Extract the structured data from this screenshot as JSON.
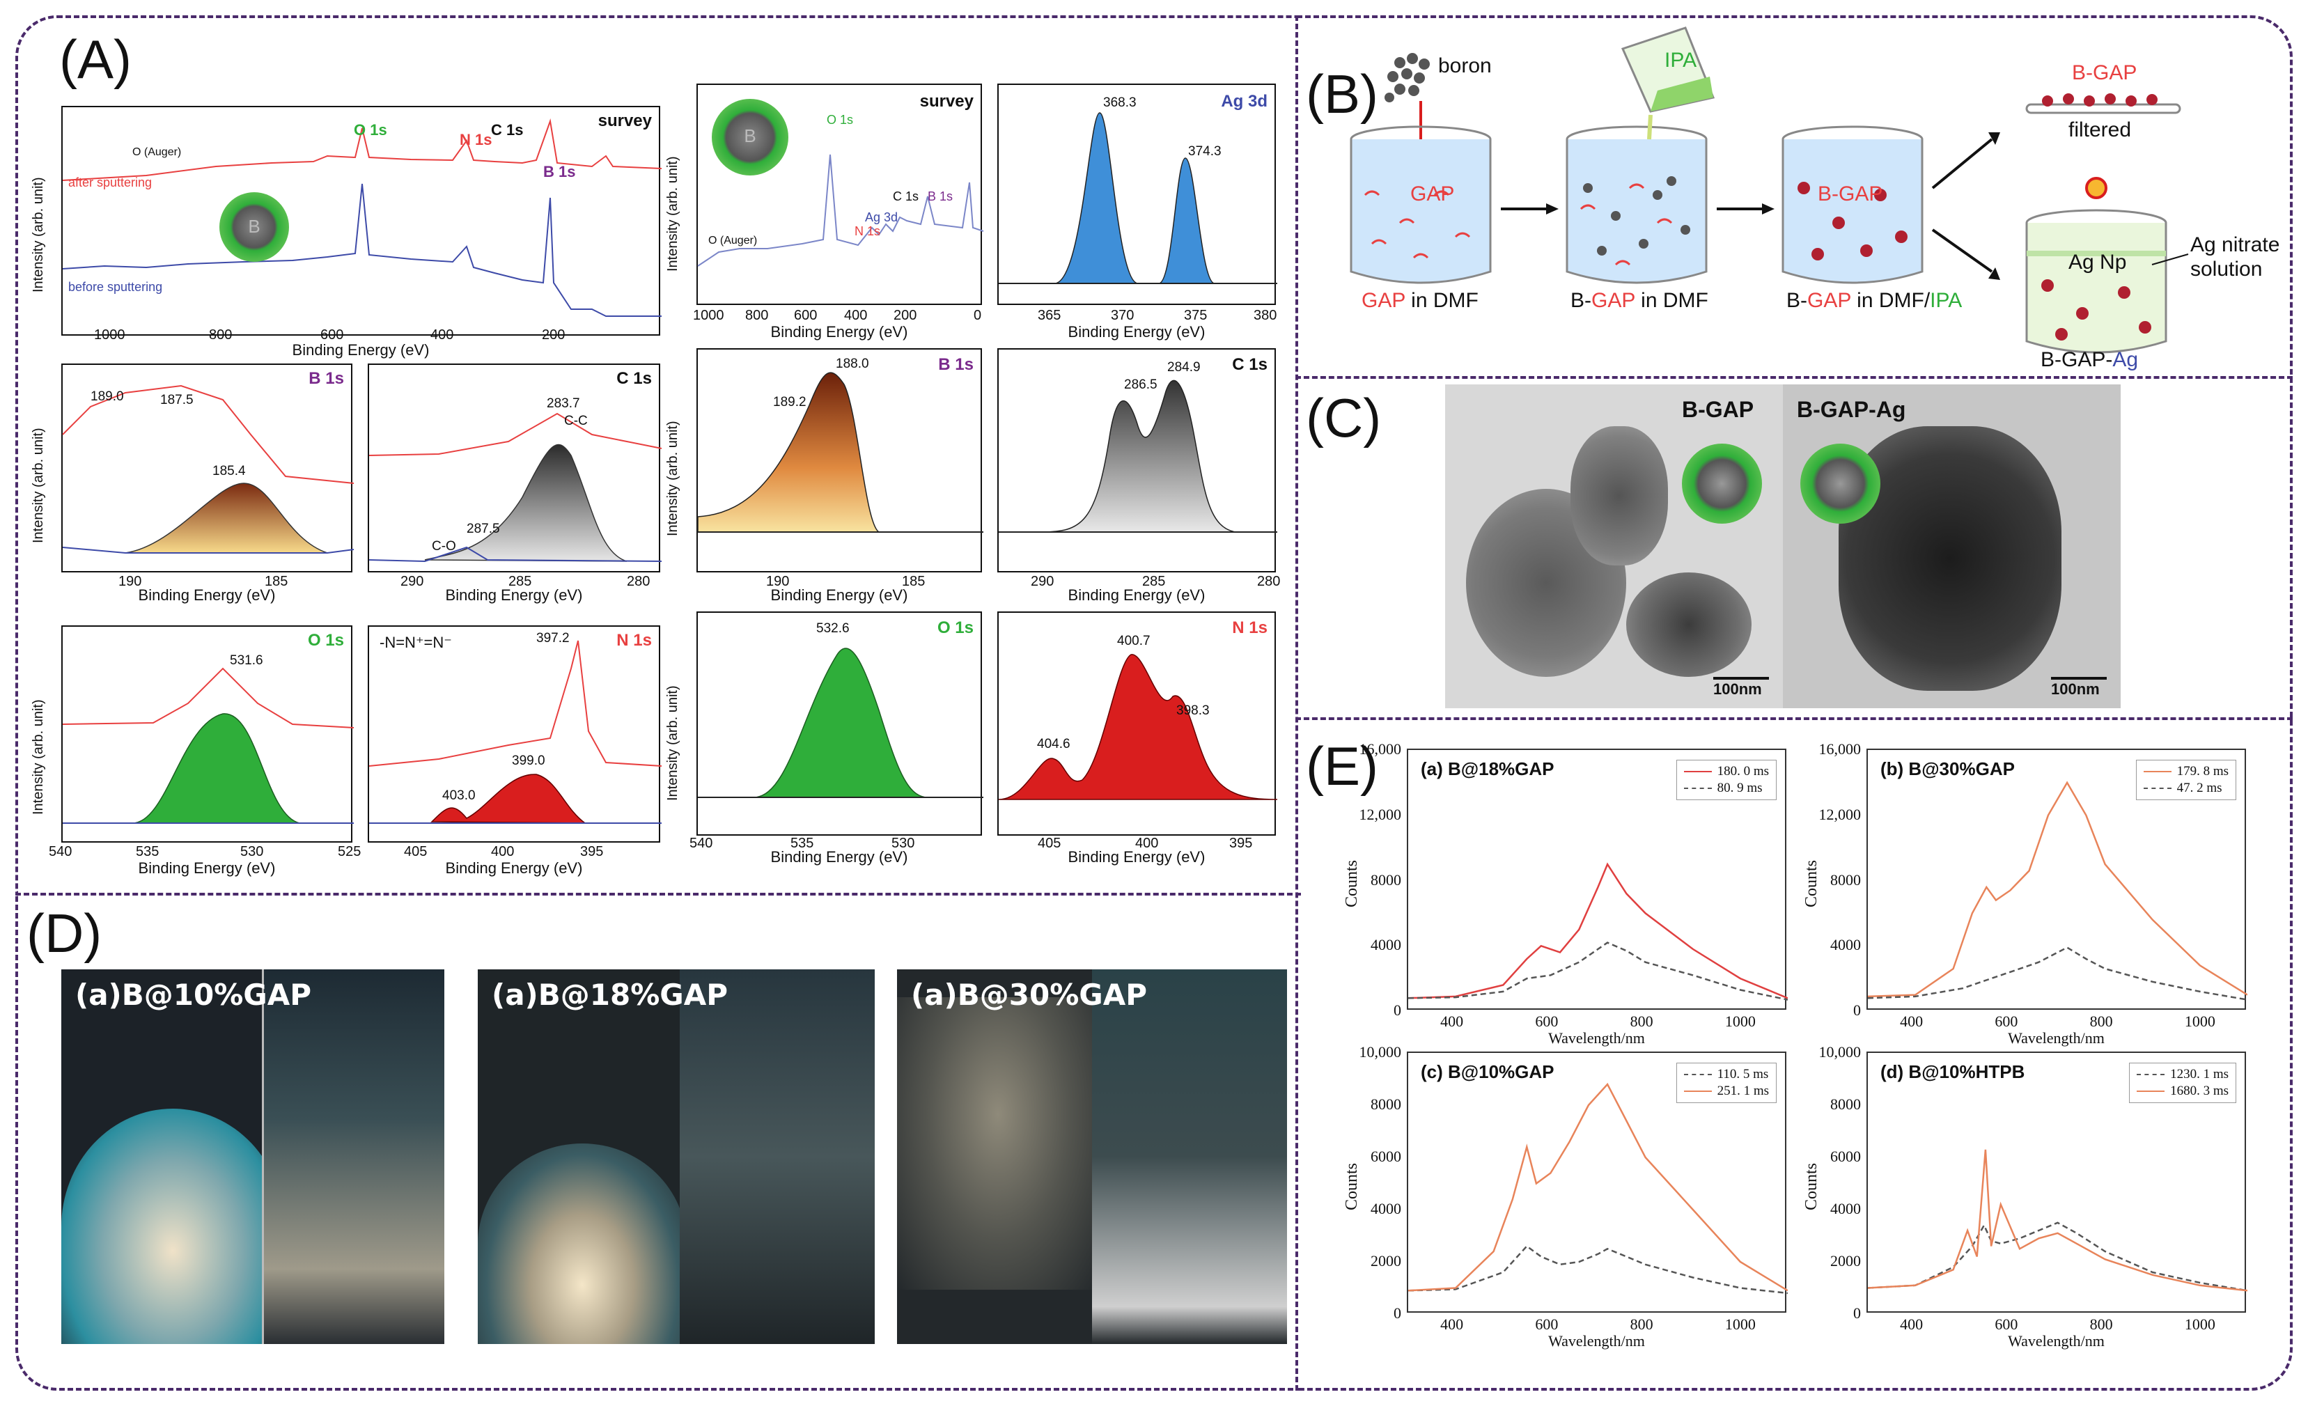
{
  "colors": {
    "frame": "#4a2a6a",
    "red": "#e84040",
    "blue": "#3d4aa8",
    "green": "#2fae3a",
    "purple": "#7a2a8c",
    "orange": "#e8845a",
    "grey_dash": "#555555"
  },
  "labels": {
    "A": "(A)",
    "B": "(B)",
    "C": "(C)",
    "D": "(D)",
    "E": "(E)"
  },
  "panel_a": {
    "survey1": {
      "title": "survey",
      "ylabel": "Intensity (arb. unit)",
      "xlabel": "Binding Energy (eV)",
      "xticks": [
        "1000",
        "800",
        "600",
        "400",
        "200"
      ],
      "peaks": [
        "O 1s",
        "N 1s",
        "C 1s",
        "B 1s",
        "O (Auger)"
      ],
      "after": "after sputtering",
      "before": "before sputtering",
      "sphere": "B"
    },
    "b1s": {
      "title": "B 1s",
      "xlabel": "Binding Energy (eV)",
      "ylabel": "Intensity (arb. unit)",
      "xticks": [
        "190",
        "185"
      ],
      "ann": [
        "189.0",
        "187.5",
        "185.4"
      ]
    },
    "c1s": {
      "title": "C 1s",
      "xlabel": "Binding Energy (eV)",
      "xticks": [
        "290",
        "285",
        "280"
      ],
      "ann": [
        "283.7",
        "C-C",
        "287.5",
        "C-O"
      ]
    },
    "o1s": {
      "title": "O 1s",
      "xlabel": "Binding Energy (eV)",
      "ylabel": "Intensity (arb. unit)",
      "xticks": [
        "540",
        "535",
        "530",
        "525"
      ],
      "ann": [
        "531.6"
      ]
    },
    "n1s": {
      "title": "N 1s",
      "xlabel": "Binding Energy (eV)",
      "xticks": [
        "405",
        "400",
        "395"
      ],
      "ann": [
        "397.2",
        "399.0",
        "403.0"
      ],
      "formula": "-N=N⁺=N⁻"
    },
    "survey2": {
      "title": "survey",
      "xlabel": "Binding Energy (eV)",
      "ylabel": "Intensity (arb. unit)",
      "xticks": [
        "1000",
        "800",
        "600",
        "400",
        "200",
        "0"
      ],
      "peaks": [
        "O 1s",
        "Ag 3d",
        "N 1s",
        "C 1s",
        "B 1s",
        "O (Auger)"
      ],
      "sphere": "B"
    },
    "ag3d": {
      "title": "Ag 3d",
      "xlabel": "Binding Energy (eV)",
      "xticks": [
        "365",
        "370",
        "375",
        "380"
      ],
      "ann": [
        "368.3",
        "374.3"
      ]
    },
    "b1s2": {
      "title": "B 1s",
      "xlabel": "Binding Energy (eV)",
      "ylabel": "Intensity (arb. unit)",
      "xticks": [
        "190",
        "185"
      ],
      "ann": [
        "188.0",
        "189.2"
      ]
    },
    "c1s2": {
      "title": "C 1s",
      "xlabel": "Binding Energy (eV)",
      "xticks": [
        "290",
        "285",
        "280"
      ],
      "ann": [
        "286.5",
        "284.9"
      ]
    },
    "o1s2": {
      "title": "O 1s",
      "xlabel": "Binding Energy (eV)",
      "ylabel": "Intensity (arb. unit)",
      "xticks": [
        "540",
        "535",
        "530"
      ],
      "ann": [
        "532.6"
      ]
    },
    "n1s2": {
      "title": "N 1s",
      "xlabel": "Binding Energy (eV)",
      "xticks": [
        "405",
        "400",
        "395"
      ],
      "ann": [
        "400.7",
        "404.6",
        "398.3"
      ]
    }
  },
  "panel_b": {
    "boron": "boron",
    "ipa": "IPA",
    "gap": "GAP",
    "b_gap": "B-GAP",
    "filtered": "filtered",
    "ag_np": "Ag Np",
    "ag_nitrate": "Ag nitrate\nsolution",
    "ag_nitrate_1": "Ag nitrate",
    "ag_nitrate_2": "solution",
    "step1_a": "GAP",
    "step1_b": " in DMF",
    "step2_a": "B-",
    "step2_b": "GAP",
    "step2_c": " in DMF",
    "step3_a": "B-",
    "step3_b": "GAP",
    "step3_c": " in DMF/",
    "step3_d": "IPA",
    "bgap_ag_a": "B-GAP-",
    "bgap_ag_b": "Ag"
  },
  "panel_c": {
    "left_label": "B-GAP",
    "right_label": "B-GAP-Ag",
    "scale_left": "100nm",
    "scale_right": "100nm"
  },
  "panel_d": {
    "labels": [
      "(a)B@10%GAP",
      "(a)B@18%GAP",
      "(a)B@30%GAP"
    ]
  },
  "chart_data": [
    {
      "type": "line",
      "title": "(a) B@18%GAP",
      "xlabel": "Wavelength/nm",
      "ylabel": "Counts",
      "xlim": [
        300,
        1100
      ],
      "ylim": [
        0,
        16000
      ],
      "yticks": [
        "0",
        "4000",
        "8000",
        "12,000",
        "16,000"
      ],
      "xticks": [
        "400",
        "600",
        "800",
        "1000"
      ],
      "series": [
        {
          "name": "180. 0 ms",
          "style": "solid-red",
          "x": [
            300,
            400,
            500,
            550,
            580,
            620,
            660,
            700,
            720,
            760,
            800,
            900,
            1000,
            1100
          ],
          "y": [
            800,
            900,
            1600,
            3200,
            4000,
            3600,
            5000,
            7600,
            9000,
            7200,
            6000,
            3800,
            2000,
            800
          ]
        },
        {
          "name": "80. 9 ms",
          "style": "dash-grey",
          "x": [
            300,
            400,
            500,
            550,
            600,
            660,
            700,
            720,
            760,
            800,
            900,
            1000,
            1100
          ],
          "y": [
            800,
            850,
            1200,
            2000,
            2200,
            3000,
            3800,
            4200,
            3700,
            3000,
            2200,
            1300,
            700
          ]
        }
      ]
    },
    {
      "type": "line",
      "title": "(b) B@30%GAP",
      "xlabel": "Wavelength/nm",
      "ylabel": "Counts",
      "xlim": [
        300,
        1100
      ],
      "ylim": [
        0,
        16000
      ],
      "yticks": [
        "0",
        "4000",
        "8000",
        "12,000",
        "16,000"
      ],
      "xticks": [
        "400",
        "600",
        "800",
        "1000"
      ],
      "series": [
        {
          "name": "179. 8 ms",
          "style": "solid-orange",
          "x": [
            300,
            400,
            480,
            520,
            550,
            570,
            600,
            640,
            680,
            720,
            760,
            800,
            900,
            1000,
            1100
          ],
          "y": [
            900,
            1000,
            2600,
            6000,
            7600,
            6800,
            7400,
            8600,
            12000,
            14000,
            12000,
            9000,
            5600,
            2800,
            1000
          ]
        },
        {
          "name": "47. 2 ms",
          "style": "dash-grey",
          "x": [
            300,
            400,
            500,
            560,
            600,
            660,
            720,
            760,
            800,
            900,
            1000,
            1100
          ],
          "y": [
            800,
            900,
            1400,
            2000,
            2400,
            3000,
            3900,
            3200,
            2600,
            1800,
            1200,
            700
          ]
        }
      ]
    },
    {
      "type": "line",
      "title": "(c) B@10%GAP",
      "xlabel": "Wavelength/nm",
      "ylabel": "Counts",
      "xlim": [
        300,
        1100
      ],
      "ylim": [
        0,
        10000
      ],
      "yticks": [
        "0",
        "2000",
        "4000",
        "6000",
        "8000",
        "10,000"
      ],
      "xticks": [
        "400",
        "600",
        "800",
        "1000"
      ],
      "series": [
        {
          "name": "110. 5 ms",
          "style": "dash-grey",
          "x": [
            300,
            400,
            500,
            550,
            580,
            620,
            660,
            700,
            720,
            760,
            800,
            900,
            1000,
            1100
          ],
          "y": [
            900,
            950,
            1600,
            2600,
            2200,
            1900,
            2000,
            2300,
            2500,
            2200,
            1900,
            1400,
            1000,
            800
          ]
        },
        {
          "name": "251. 1 ms",
          "style": "solid-orange",
          "x": [
            300,
            400,
            480,
            520,
            550,
            570,
            600,
            640,
            680,
            720,
            760,
            800,
            900,
            1000,
            1100
          ],
          "y": [
            900,
            1000,
            2400,
            4400,
            6400,
            5000,
            5400,
            6600,
            8000,
            8800,
            7400,
            6000,
            4000,
            2000,
            900
          ]
        }
      ]
    },
    {
      "type": "line",
      "title": "(d) B@10%HTPB",
      "xlabel": "Wavelength/nm",
      "ylabel": "Counts",
      "xlim": [
        300,
        1100
      ],
      "ylim": [
        0,
        10000
      ],
      "yticks": [
        "0",
        "2000",
        "4000",
        "6000",
        "8000",
        "10,000"
      ],
      "xticks": [
        "400",
        "600",
        "800",
        "1000"
      ],
      "series": [
        {
          "name": "1230. 1 ms",
          "style": "dash-grey",
          "x": [
            300,
            400,
            480,
            520,
            545,
            560,
            580,
            620,
            660,
            700,
            740,
            800,
            900,
            1000,
            1100
          ],
          "y": [
            1000,
            1100,
            1800,
            2600,
            3400,
            2800,
            2700,
            2900,
            3200,
            3500,
            3100,
            2400,
            1600,
            1200,
            900
          ]
        },
        {
          "name": "1680. 3 ms",
          "style": "solid-orange",
          "x": [
            300,
            400,
            480,
            510,
            530,
            548,
            560,
            580,
            620,
            660,
            700,
            740,
            800,
            900,
            1000,
            1100
          ],
          "y": [
            1000,
            1100,
            1700,
            3200,
            2200,
            6300,
            2600,
            4200,
            2500,
            2900,
            3100,
            2700,
            2100,
            1500,
            1100,
            900
          ]
        }
      ]
    }
  ]
}
